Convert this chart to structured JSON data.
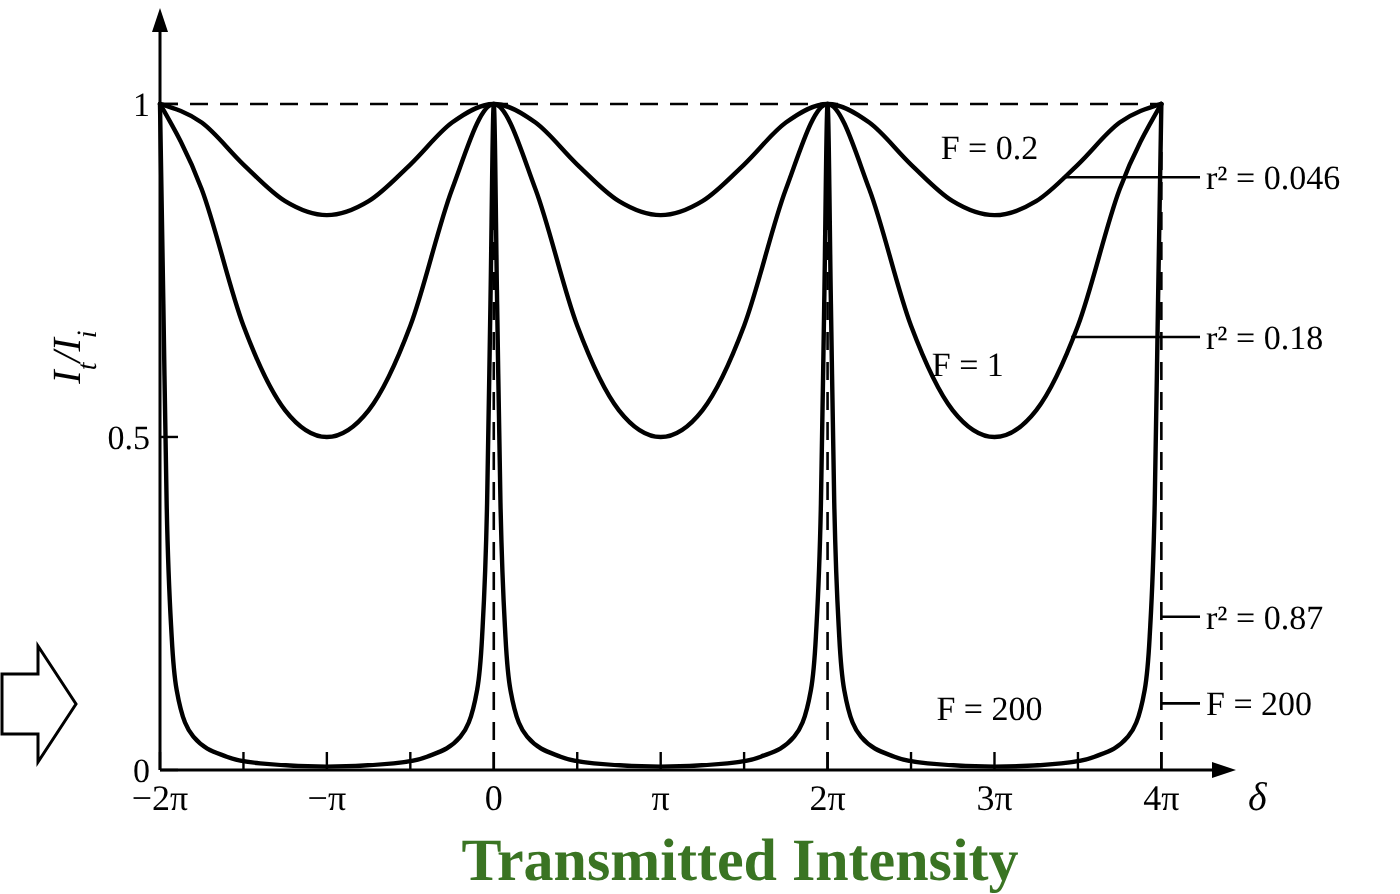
{
  "chart_data": {
    "type": "line",
    "title": "Transmitted Intensity",
    "xlabel": "δ",
    "ylabel": "I$_{t}$/I$_{i}$",
    "xlim": [
      -6.283,
      13.67
    ],
    "ylim": [
      0,
      1.12
    ],
    "xticks": [
      {
        "value": -6.283,
        "label": "−2π"
      },
      {
        "value": -4.712,
        "label": null
      },
      {
        "value": -3.142,
        "label": "−π"
      },
      {
        "value": -1.571,
        "label": null
      },
      {
        "value": 0,
        "label": "0"
      },
      {
        "value": 1.571,
        "label": null
      },
      {
        "value": 3.142,
        "label": "π"
      },
      {
        "value": 4.712,
        "label": null
      },
      {
        "value": 6.283,
        "label": "2π"
      },
      {
        "value": 7.854,
        "label": null
      },
      {
        "value": 9.425,
        "label": "3π"
      },
      {
        "value": 10.996,
        "label": null
      },
      {
        "value": 12.566,
        "label": "4π"
      }
    ],
    "yticks": [
      0,
      0.5,
      1
    ],
    "grid": false,
    "legend": false,
    "marker": "none",
    "line_style": "solid",
    "ref_lines": [
      {
        "axis": "y",
        "value": 1,
        "line_style": "dashed",
        "color": "#000000"
      },
      {
        "axis": "x",
        "value": 0,
        "line_style": "dashed",
        "color": "#000000"
      },
      {
        "axis": "x",
        "value": 6.283,
        "line_style": "dashed",
        "color": "#000000"
      },
      {
        "axis": "x",
        "value": 12.566,
        "line_style": "dashed",
        "color": "#000000"
      }
    ],
    "series": [
      {
        "name": "F = 0.2",
        "color": "#000000",
        "x": [
          -6.283,
          -5.498,
          -4.712,
          -3.927,
          -3.142,
          -2.356,
          -1.571,
          -0.785,
          0,
          0.785,
          1.571,
          2.356,
          3.142,
          3.927,
          4.712,
          5.498,
          6.283,
          7.069,
          7.854,
          8.639,
          9.425,
          10.21,
          10.996,
          11.781,
          12.566
        ],
        "values": [
          1,
          0.972,
          0.909,
          0.854,
          0.833,
          0.854,
          0.909,
          0.972,
          1,
          0.972,
          0.909,
          0.854,
          0.833,
          0.854,
          0.909,
          0.972,
          1,
          0.972,
          0.909,
          0.854,
          0.833,
          0.854,
          0.909,
          0.972,
          1
        ]
      },
      {
        "name": "F = 1",
        "color": "#000000",
        "x": [
          -6.283,
          -5.498,
          -4.712,
          -3.927,
          -3.142,
          -2.356,
          -1.571,
          -0.785,
          0,
          0.785,
          1.571,
          2.356,
          3.142,
          3.927,
          4.712,
          5.498,
          6.283,
          7.069,
          7.854,
          8.639,
          9.425,
          10.21,
          10.996,
          11.781,
          12.566
        ],
        "values": [
          1,
          0.872,
          0.667,
          0.54,
          0.5,
          0.54,
          0.667,
          0.872,
          1,
          0.872,
          0.667,
          0.54,
          0.5,
          0.54,
          0.667,
          0.872,
          1,
          0.872,
          0.667,
          0.54,
          0.5,
          0.54,
          0.667,
          0.872,
          1
        ]
      },
      {
        "name": "F = 200",
        "color": "#000000",
        "x": [
          -6.283,
          -6.22,
          -6.158,
          -6.063,
          -5.969,
          -5.655,
          -5.027,
          -4.398,
          -3.142,
          -1.885,
          -1.257,
          -0.628,
          -0.314,
          -0.22,
          -0.126,
          -0.063,
          0,
          0.063,
          0.126,
          0.22,
          0.314,
          0.628,
          1.257,
          1.885,
          3.142,
          4.398,
          5.027,
          5.655,
          5.969,
          6.063,
          6.158,
          6.22,
          6.283,
          6.346,
          6.409,
          6.503,
          6.597,
          6.911,
          7.54,
          8.168,
          9.425,
          10.681,
          11.31,
          11.938,
          12.252,
          12.346,
          12.441,
          12.503,
          12.566
        ],
        "values": [
          1,
          0.7,
          0.4,
          0.2,
          0.12,
          0.05,
          0.02,
          0.01,
          0.005,
          0.01,
          0.02,
          0.05,
          0.12,
          0.2,
          0.4,
          0.7,
          1,
          0.7,
          0.4,
          0.2,
          0.12,
          0.05,
          0.02,
          0.01,
          0.005,
          0.01,
          0.02,
          0.05,
          0.12,
          0.2,
          0.4,
          0.7,
          1,
          0.7,
          0.4,
          0.2,
          0.12,
          0.05,
          0.02,
          0.01,
          0.005,
          0.01,
          0.02,
          0.05,
          0.12,
          0.2,
          0.4,
          0.7,
          1
        ]
      }
    ],
    "annotations": [
      "r² = 0.046",
      "r² = 0.18",
      {
        "text": "r² = 0.87",
        "x": 12.566,
        "y": 0.23
      },
      {
        "text": "F = 200",
        "x": 12.566,
        "y": 0.1
      }
    ]
  }
}
